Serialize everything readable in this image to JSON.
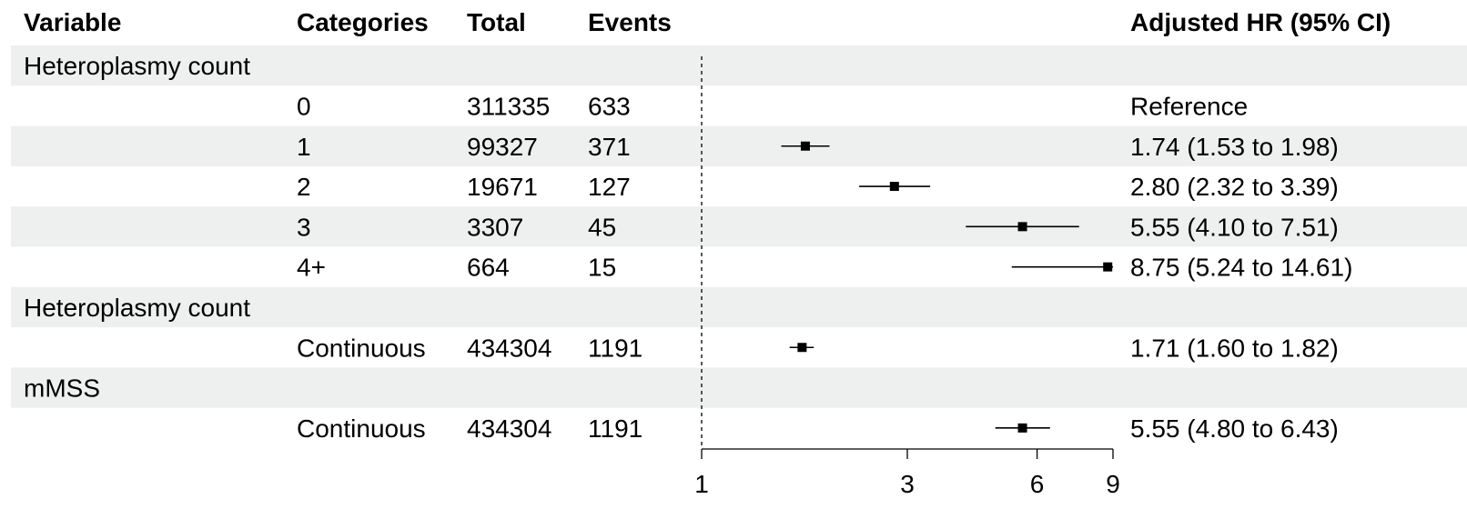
{
  "headers": {
    "variable": "Variable",
    "categories": "Categories",
    "total": "Total",
    "events": "Events",
    "hr": "Adjusted HR (95% CI)"
  },
  "chart_data": {
    "type": "forest",
    "x_scale": "log",
    "xlim": [
      1,
      9
    ],
    "x_ticks": [
      1,
      3,
      6,
      9
    ],
    "reference_line": 1,
    "rows": [
      {
        "kind": "group",
        "label": "Heteroplasmy count",
        "shaded": true
      },
      {
        "kind": "item",
        "category": "0",
        "total": "311335",
        "events": "633",
        "hr_text": "Reference",
        "shaded": false
      },
      {
        "kind": "item",
        "category": "1",
        "total": "99327",
        "events": "371",
        "hr": 1.74,
        "lo": 1.53,
        "hi": 1.98,
        "hr_text": "1.74 (1.53 to 1.98)",
        "shaded": true
      },
      {
        "kind": "item",
        "category": "2",
        "total": "19671",
        "events": "127",
        "hr": 2.8,
        "lo": 2.32,
        "hi": 3.39,
        "hr_text": "2.80 (2.32 to 3.39)",
        "shaded": false
      },
      {
        "kind": "item",
        "category": "3",
        "total": "3307",
        "events": "45",
        "hr": 5.55,
        "lo": 4.1,
        "hi": 7.51,
        "hr_text": "5.55 (4.10 to 7.51)",
        "shaded": true
      },
      {
        "kind": "item",
        "category": "4+",
        "total": "664",
        "events": "15",
        "hr": 8.75,
        "lo": 5.24,
        "hi": 14.61,
        "hr_text": "8.75 (5.24 to 14.61)",
        "shaded": false
      },
      {
        "kind": "group",
        "label": "Heteroplasmy count",
        "shaded": true
      },
      {
        "kind": "item",
        "category": "Continuous",
        "total": "434304",
        "events": "1191",
        "hr": 1.71,
        "lo": 1.6,
        "hi": 1.82,
        "hr_text": "1.71 (1.60 to 1.82)",
        "shaded": false
      },
      {
        "kind": "group",
        "label": "mMSS",
        "shaded": true
      },
      {
        "kind": "item",
        "category": "Continuous",
        "total": "434304",
        "events": "1191",
        "hr": 5.55,
        "lo": 4.8,
        "hi": 6.43,
        "hr_text": "5.55 (4.80 to 6.43)",
        "shaded": false
      }
    ]
  },
  "colors": {
    "band": "#eef0ef",
    "ink": "#000000"
  }
}
